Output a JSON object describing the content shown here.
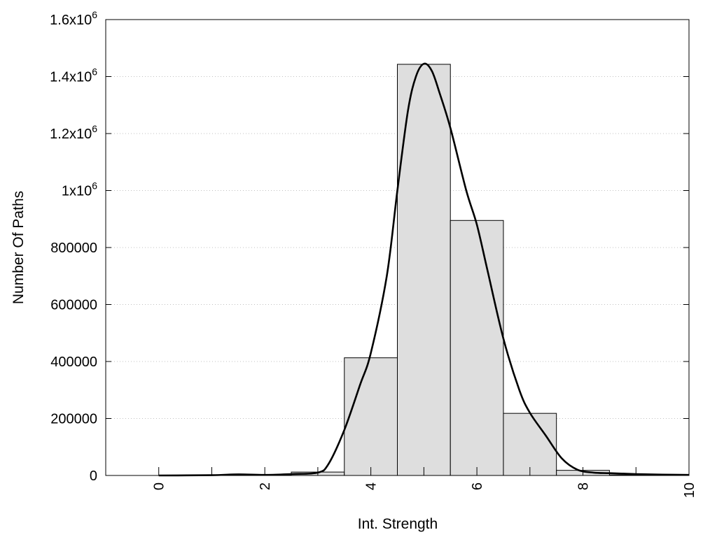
{
  "chart_data": {
    "type": "bar",
    "xlabel": "Int. Strength",
    "ylabel": "Number Of Paths",
    "xlim": [
      -1,
      10
    ],
    "ylim": [
      0,
      1600000
    ],
    "grid": "horizontal dotted",
    "x_ticks": [
      {
        "value": 0,
        "label": "0"
      },
      {
        "value": 2,
        "label": "2"
      },
      {
        "value": 4,
        "label": "4"
      },
      {
        "value": 6,
        "label": "6"
      },
      {
        "value": 8,
        "label": "8"
      },
      {
        "value": 10,
        "label": "10"
      }
    ],
    "y_ticks": [
      {
        "value": 0,
        "label": "0",
        "exp": ""
      },
      {
        "value": 200000,
        "label": "200000",
        "exp": ""
      },
      {
        "value": 400000,
        "label": "400000",
        "exp": ""
      },
      {
        "value": 600000,
        "label": "600000",
        "exp": ""
      },
      {
        "value": 800000,
        "label": "800000",
        "exp": ""
      },
      {
        "value": 1000000,
        "label": "1x10",
        "exp": "6"
      },
      {
        "value": 1200000,
        "label": "1.2x10",
        "exp": "6"
      },
      {
        "value": 1400000,
        "label": "1.4x10",
        "exp": "6"
      },
      {
        "value": 1600000,
        "label": "1.6x10",
        "exp": "6"
      }
    ],
    "bin_width": 1,
    "bars": [
      {
        "x": 0,
        "value": 0
      },
      {
        "x": 1,
        "value": 500
      },
      {
        "x": 2,
        "value": 2000
      },
      {
        "x": 3,
        "value": 12000
      },
      {
        "x": 4,
        "value": 413000
      },
      {
        "x": 5,
        "value": 1443000
      },
      {
        "x": 6,
        "value": 895000
      },
      {
        "x": 7,
        "value": 218000
      },
      {
        "x": 8,
        "value": 18000
      },
      {
        "x": 9,
        "value": 2000
      },
      {
        "x": 10,
        "value": 500
      }
    ],
    "fit_curve": {
      "x": [
        0,
        1,
        1.5,
        2,
        2.5,
        3,
        3.2,
        3.5,
        3.8,
        4,
        4.3,
        4.5,
        4.7,
        4.85,
        5,
        5.15,
        5.3,
        5.5,
        5.8,
        6,
        6.2,
        6.5,
        6.8,
        7,
        7.3,
        7.6,
        7.9,
        8.2,
        8.5,
        9,
        9.5,
        10
      ],
      "y": [
        0,
        1000,
        4000,
        2000,
        5000,
        10000,
        40000,
        160000,
        320000,
        430000,
        700000,
        1000000,
        1280000,
        1400000,
        1445000,
        1420000,
        1340000,
        1220000,
        1000000,
        880000,
        720000,
        480000,
        300000,
        220000,
        140000,
        60000,
        20000,
        10000,
        8000,
        5000,
        3000,
        2000
      ]
    },
    "colors": {
      "bar_fill": "#dedede",
      "bar_stroke": "#000000",
      "curve": "#000000",
      "grid": "#c0c0c0"
    }
  }
}
